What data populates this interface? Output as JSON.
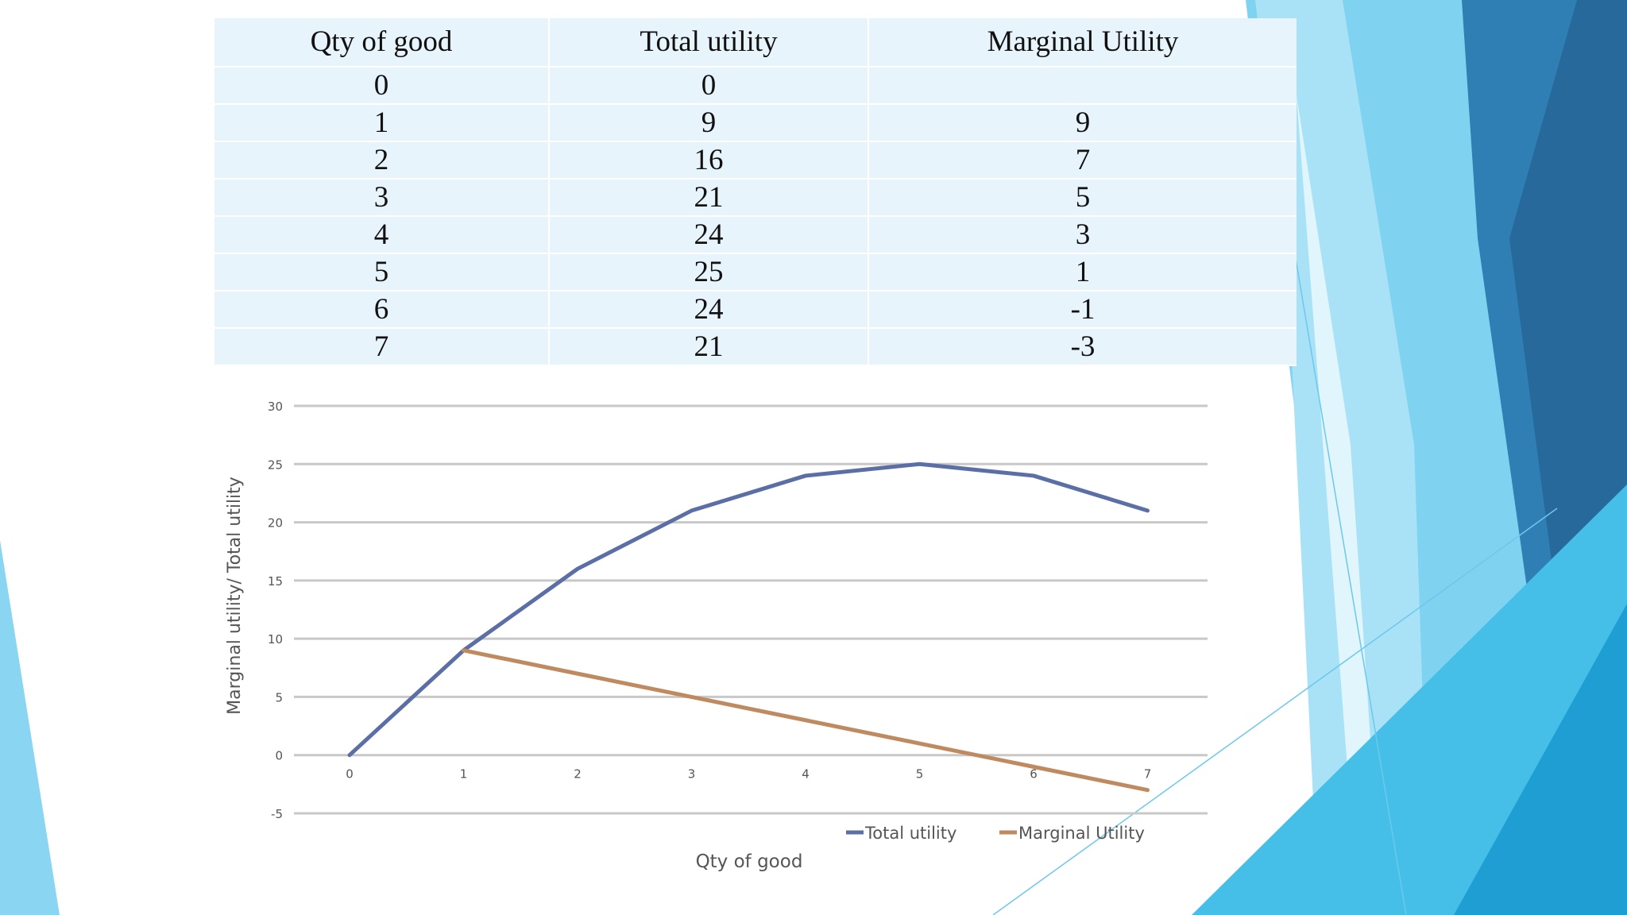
{
  "table": {
    "headers": [
      "Qty of good",
      "Total utility",
      "Marginal Utility"
    ],
    "rows": [
      [
        "0",
        "0",
        ""
      ],
      [
        "1",
        "9",
        "9"
      ],
      [
        "2",
        "16",
        "7"
      ],
      [
        "3",
        "21",
        "5"
      ],
      [
        "4",
        "24",
        "3"
      ],
      [
        "5",
        "25",
        "1"
      ],
      [
        "6",
        "24",
        "-1"
      ],
      [
        "7",
        "21",
        "-3"
      ]
    ]
  },
  "chart_data": {
    "type": "line",
    "x": [
      0,
      1,
      2,
      3,
      4,
      5,
      6,
      7
    ],
    "x_tick_labels": [
      "0",
      "1",
      "2",
      "3",
      "4",
      "5",
      "6",
      "7"
    ],
    "series": [
      {
        "name": "Total utility",
        "x": [
          0,
          1,
          2,
          3,
          4,
          5,
          6,
          7
        ],
        "values": [
          0,
          9,
          16,
          21,
          24,
          25,
          24,
          21
        ],
        "color": "#5b6fa6"
      },
      {
        "name": "Marginal Utility",
        "x": [
          1,
          2,
          3,
          4,
          5,
          6,
          7
        ],
        "values": [
          9,
          7,
          5,
          3,
          1,
          -1,
          -3
        ],
        "color": "#c08a60"
      }
    ],
    "xlabel": "Qty of good",
    "ylabel": "Marginal utility/ Total utility",
    "ylim": [
      -5,
      30
    ],
    "yticks": [
      30,
      25,
      20,
      15,
      10,
      5,
      0,
      -5
    ],
    "grid": true,
    "legend_position": "bottom-right"
  },
  "colors": {
    "table_fill": "#e8f4fc",
    "gridline": "#c8c8c8",
    "axis_text": "#555555",
    "accent_light": "#7fd3f0",
    "accent_mid": "#36b8e4",
    "accent_dark": "#2c6d9e"
  }
}
